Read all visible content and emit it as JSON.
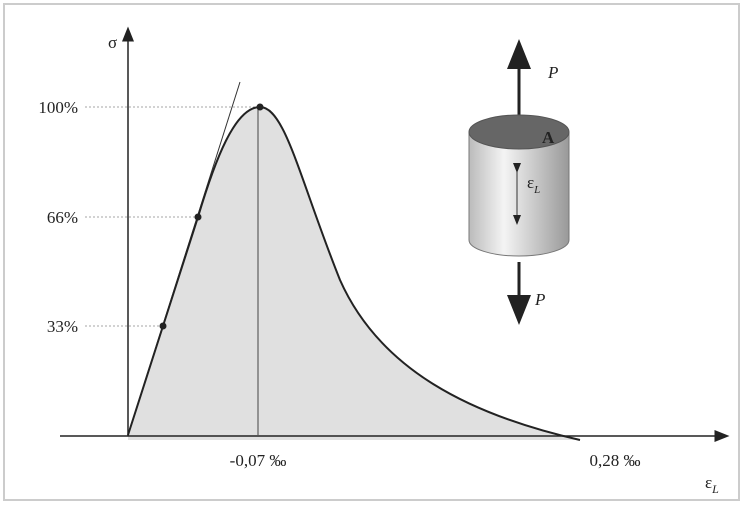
{
  "y_axis": {
    "label": "σ",
    "ticks": [
      "100%",
      "66%",
      "33%"
    ]
  },
  "x_axis": {
    "label": "ε",
    "label_sub": "L",
    "ticks": [
      "-0,07 ‰",
      "0,28 ‰"
    ]
  },
  "specimen": {
    "top_force": "P",
    "bottom_force": "P",
    "area": "A",
    "strain": "ε",
    "strain_sub": "L"
  }
}
